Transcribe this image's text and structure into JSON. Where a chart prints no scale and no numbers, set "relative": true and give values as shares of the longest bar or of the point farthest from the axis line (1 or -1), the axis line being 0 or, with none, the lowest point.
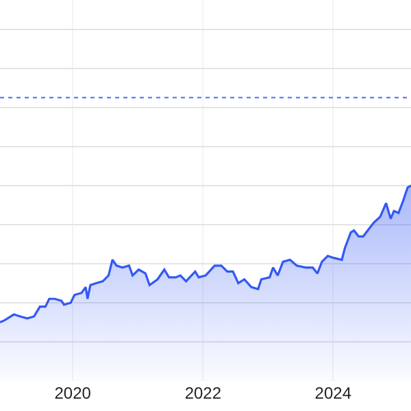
{
  "chart_data": {
    "type": "area",
    "relative": true,
    "grid": true,
    "legend": false,
    "marker": "none",
    "line_style": "solid",
    "x": [
      "2018-11-19",
      "2018-12-14",
      "2019-02-05",
      "2019-03-13",
      "2019-04-21",
      "2019-05-29",
      "2019-07-01",
      "2019-08-01",
      "2019-08-22",
      "2019-09-22",
      "2019-10-30",
      "2019-11-13",
      "2019-12-21",
      "2020-01-11",
      "2020-02-19",
      "2020-03-14",
      "2020-03-24",
      "2020-04-09",
      "2020-05-10",
      "2020-06-18",
      "2020-07-20",
      "2020-08-11",
      "2020-09-03",
      "2020-10-06",
      "2020-11-12",
      "2020-12-02",
      "2021-01-05",
      "2021-02-12",
      "2021-03-07",
      "2021-04-21",
      "2021-05-29",
      "2021-06-24",
      "2021-08-01",
      "2021-08-27",
      "2021-09-28",
      "2021-11-18",
      "2021-12-08",
      "2022-01-16",
      "2022-03-07",
      "2022-04-14",
      "2022-05-17",
      "2022-06-18",
      "2022-07-18",
      "2022-08-21",
      "2022-09-29",
      "2022-11-06",
      "2022-11-24",
      "2023-01-10",
      "2023-01-29",
      "2023-02-24",
      "2023-03-26",
      "2023-05-04",
      "2023-06-11",
      "2023-08-01",
      "2023-09-09",
      "2023-10-05",
      "2023-10-30",
      "2023-12-02",
      "2024-01-03",
      "2024-02-19",
      "2024-03-07",
      "2024-04-09",
      "2024-04-27",
      "2024-05-23",
      "2024-06-18",
      "2024-07-13",
      "2024-08-16",
      "2024-09-21",
      "2024-10-24",
      "2024-11-19",
      "2024-12-07",
      "2025-01-02",
      "2025-01-27",
      "2025-02-22",
      "2025-03-13"
    ],
    "series": [
      {
        "color": "#3358f4",
        "values": [
          0.3,
          0.31,
          0.34,
          0.33,
          0.32,
          0.33,
          0.38,
          0.38,
          0.42,
          0.42,
          0.41,
          0.39,
          0.4,
          0.44,
          0.45,
          0.48,
          0.42,
          0.49,
          0.5,
          0.51,
          0.54,
          0.62,
          0.59,
          0.58,
          0.59,
          0.54,
          0.57,
          0.55,
          0.49,
          0.52,
          0.57,
          0.53,
          0.53,
          0.54,
          0.51,
          0.56,
          0.53,
          0.54,
          0.59,
          0.59,
          0.56,
          0.56,
          0.5,
          0.52,
          0.48,
          0.47,
          0.52,
          0.53,
          0.58,
          0.54,
          0.61,
          0.62,
          0.59,
          0.58,
          0.58,
          0.55,
          0.61,
          0.64,
          0.63,
          0.62,
          0.68,
          0.76,
          0.77,
          0.74,
          0.74,
          0.77,
          0.81,
          0.84,
          0.91,
          0.83,
          0.87,
          0.86,
          0.92,
          0.99,
          1
        ]
      }
    ],
    "xlim": [
      "2018-11-19",
      "2025-03-13"
    ],
    "xticks": [
      "2020",
      "2022",
      "2024"
    ],
    "ref_lines": [
      {
        "axis": "y",
        "value": 1.45,
        "color": "#4a6cf7",
        "line_style": "dotted"
      }
    ]
  }
}
